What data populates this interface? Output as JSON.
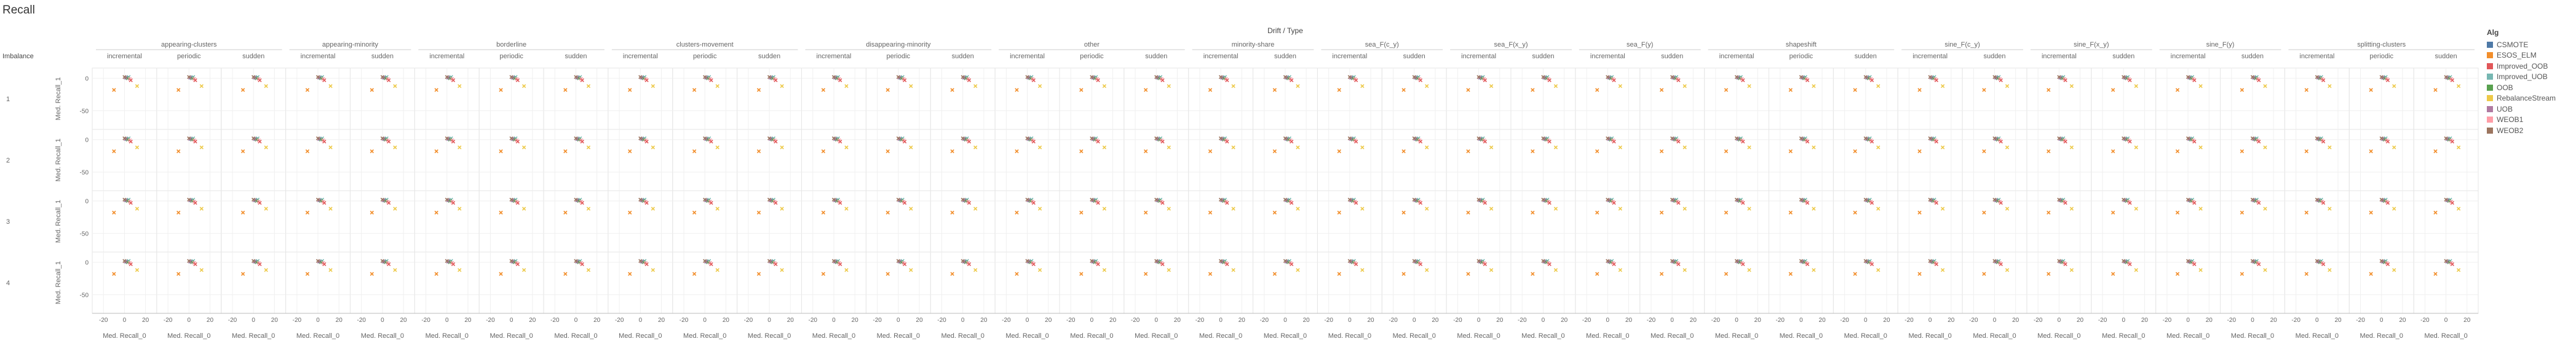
{
  "page": {
    "title": "Recall"
  },
  "chart_data": {
    "type": "scatter",
    "title": "Recall",
    "facet_header": "Drift / Type",
    "row_header": "Imbalance",
    "rows": [
      "1",
      "2",
      "3",
      "4"
    ],
    "row_axis_label": "Med. Recall_1",
    "col_axis_label": "Med. Recall_0",
    "y_ticks": [
      0,
      -50
    ],
    "x_ticks": [
      -20,
      0,
      20
    ],
    "xlim": [
      -26,
      26
    ],
    "ylim": [
      -75,
      12
    ],
    "drift_groups": [
      {
        "name": "appearing-clusters",
        "types": [
          "incremental",
          "periodic",
          "sudden"
        ]
      },
      {
        "name": "appearing-minority",
        "types": [
          "incremental",
          "sudden"
        ]
      },
      {
        "name": "borderline",
        "types": [
          "incremental",
          "periodic",
          "sudden"
        ]
      },
      {
        "name": "clusters-movement",
        "types": [
          "incremental",
          "periodic",
          "sudden"
        ]
      },
      {
        "name": "disappearing-minority",
        "types": [
          "incremental",
          "periodic",
          "sudden"
        ]
      },
      {
        "name": "other",
        "types": [
          "incremental",
          "periodic",
          "sudden"
        ]
      },
      {
        "name": "minority-share",
        "types": [
          "incremental",
          "sudden"
        ]
      },
      {
        "name": "sea_F(c_y)",
        "types": [
          "incremental",
          "sudden"
        ]
      },
      {
        "name": "sea_F(x_y)",
        "types": [
          "incremental",
          "sudden"
        ]
      },
      {
        "name": "sea_F(y)",
        "types": [
          "incremental",
          "sudden"
        ]
      },
      {
        "name": "shapeshift",
        "types": [
          "incremental",
          "periodic",
          "sudden"
        ]
      },
      {
        "name": "sine_F(c_y)",
        "types": [
          "incremental",
          "sudden"
        ]
      },
      {
        "name": "sine_F(x_y)",
        "types": [
          "incremental",
          "sudden"
        ]
      },
      {
        "name": "sine_F(y)",
        "types": [
          "incremental",
          "sudden"
        ]
      },
      {
        "name": "splitting-clusters",
        "types": [
          "incremental",
          "periodic",
          "sudden"
        ]
      }
    ],
    "legend": {
      "title": "Alg",
      "items": [
        {
          "name": "CSMOTE",
          "color": "#4e79a7"
        },
        {
          "name": "ESOS_ELM",
          "color": "#f28e2b"
        },
        {
          "name": "Improved_OOB",
          "color": "#e15759"
        },
        {
          "name": "Improved_UOB",
          "color": "#76b7b2"
        },
        {
          "name": "OOB",
          "color": "#59a14f"
        },
        {
          "name": "RebalanceStream",
          "color": "#edc948"
        },
        {
          "name": "UOB",
          "color": "#b07aa1"
        },
        {
          "name": "WEOB1",
          "color": "#ff9da7"
        },
        {
          "name": "WEOB2",
          "color": "#9c755f"
        }
      ]
    },
    "points_per_panel": [
      {
        "alg": "CSMOTE",
        "x": 2,
        "y": 1
      },
      {
        "alg": "Improved_UOB",
        "x": 4,
        "y": 2
      },
      {
        "alg": "OOB",
        "x": 3,
        "y": 0
      },
      {
        "alg": "UOB",
        "x": 1,
        "y": 1
      },
      {
        "alg": "WEOB1",
        "x": 5,
        "y": -1
      },
      {
        "alg": "WEOB2",
        "x": 0,
        "y": 2
      },
      {
        "alg": "Improved_OOB",
        "x": 6,
        "y": -3
      },
      {
        "alg": "RebalanceStream",
        "x": 12,
        "y": -12
      },
      {
        "alg": "ESOS_ELM",
        "x": -10,
        "y": -18
      }
    ]
  }
}
